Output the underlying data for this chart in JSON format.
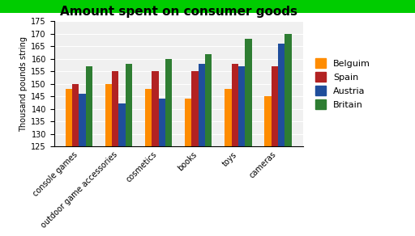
{
  "title": "Amount spent on consumer goods",
  "ylabel": "Thousand pounds string",
  "categories": [
    "console games",
    "outdoor game accessories",
    "cosmetics",
    "books",
    "toys",
    "cameras"
  ],
  "series": {
    "Belguim": [
      148,
      150,
      148,
      144,
      148,
      145
    ],
    "Spain": [
      150,
      155,
      155,
      155,
      158,
      157
    ],
    "Austria": [
      146,
      142,
      144,
      158,
      157,
      166
    ],
    "Britain": [
      157,
      158,
      160,
      162,
      168,
      170
    ]
  },
  "colors": {
    "Belguim": "#FF8C00",
    "Spain": "#B22222",
    "Austria": "#1F4E9C",
    "Britain": "#2E7D32"
  },
  "ylim": [
    125,
    175
  ],
  "yticks": [
    125,
    130,
    135,
    140,
    145,
    150,
    155,
    160,
    165,
    170,
    175
  ],
  "top_bar_color": "#00CC00",
  "background_color": "#FFFFFF",
  "title_fontsize": 11,
  "legend_fontsize": 8,
  "axis_fontsize": 7,
  "ylabel_fontsize": 7
}
